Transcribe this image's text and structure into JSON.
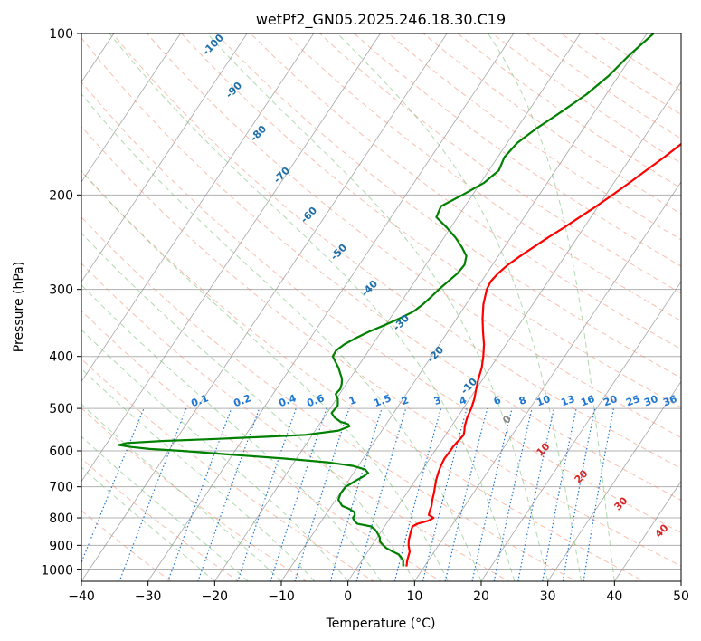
{
  "chart_data": {
    "type": "line",
    "title": "wetPf2_GN05.2025.246.18.30.C19",
    "xlabel": "Temperature (°C)",
    "ylabel": "Pressure (hPa)",
    "xlim": [
      -40,
      50
    ],
    "ylim": [
      1050,
      100
    ],
    "y_scale": "log",
    "x_ticks": [
      "−40",
      "−30",
      "−20",
      "−10",
      "0",
      "10",
      "20",
      "30",
      "40",
      "50"
    ],
    "y_ticks": [
      "100",
      "200",
      "300",
      "400",
      "500",
      "600",
      "700",
      "800",
      "900",
      "1000"
    ],
    "grid": true,
    "series": [
      {
        "color": "#ff0000",
        "p": [
          985,
          960,
          925,
          900,
          880,
          850,
          830,
          820,
          810,
          800,
          790,
          780,
          760,
          740,
          720,
          700,
          680,
          660,
          640,
          620,
          600,
          590,
          580,
          570,
          560,
          550,
          540,
          520,
          500,
          480,
          460,
          440,
          420,
          400,
          380,
          360,
          340,
          320,
          300,
          290,
          280,
          270,
          260,
          250,
          240,
          230,
          220,
          210,
          200,
          190,
          180,
          170,
          160,
          150,
          140,
          130,
          120,
          110,
          100
        ],
        "t": [
          7.3,
          6.8,
          6.3,
          5.5,
          5.0,
          4.5,
          4.2,
          4.7,
          6.0,
          6.5,
          5.5,
          5.3,
          5.0,
          4.5,
          4.1,
          3.6,
          3.1,
          2.7,
          2.4,
          2.2,
          2.3,
          2.3,
          2.4,
          2.6,
          2.7,
          2.4,
          2.0,
          1.5,
          1.2,
          0.7,
          0.0,
          -0.7,
          -1.3,
          -2.2,
          -3.3,
          -4.7,
          -6.1,
          -7.4,
          -8.4,
          -8.6,
          -8.3,
          -7.7,
          -6.7,
          -5.6,
          -4.4,
          -3.0,
          -1.7,
          -0.3,
          1.0,
          2.3,
          3.6,
          5.0,
          6.3,
          7.6,
          9.0,
          10.7,
          12.3,
          14.5,
          16.5
        ]
      },
      {
        "color": "#008000",
        "p": [
          985,
          960,
          935,
          925,
          910,
          900,
          885,
          870,
          850,
          840,
          830,
          820,
          810,
          800,
          790,
          780,
          770,
          760,
          740,
          720,
          700,
          690,
          680,
          670,
          660,
          650,
          640,
          630,
          620,
          610,
          600,
          595,
          590,
          585,
          580,
          575,
          570,
          565,
          560,
          550,
          540,
          535,
          530,
          520,
          510,
          500,
          495,
          490,
          480,
          470,
          460,
          450,
          440,
          430,
          420,
          410,
          400,
          390,
          380,
          370,
          360,
          350,
          340,
          330,
          320,
          310,
          300,
          290,
          280,
          270,
          260,
          250,
          240,
          230,
          220,
          210,
          200,
          190,
          180,
          170,
          160,
          150,
          140,
          130,
          120,
          110,
          100
        ],
        "t": [
          6.8,
          6.2,
          4.9,
          3.8,
          2.4,
          1.7,
          0.8,
          0.4,
          -0.6,
          -1.2,
          -2.0,
          -4.4,
          -5.1,
          -5.6,
          -5.6,
          -6.0,
          -7.0,
          -8.4,
          -9.6,
          -9.9,
          -9.8,
          -9.3,
          -8.8,
          -8.2,
          -7.8,
          -8.6,
          -10.8,
          -15.0,
          -22.0,
          -30.0,
          -38.0,
          -43.0,
          -46.0,
          -48.0,
          -47.0,
          -42.0,
          -34.0,
          -27.0,
          -21.0,
          -16.5,
          -15.3,
          -15.7,
          -17.0,
          -18.4,
          -19.3,
          -19.2,
          -19.1,
          -19.3,
          -19.8,
          -20.6,
          -20.4,
          -20.7,
          -21.2,
          -22.0,
          -22.8,
          -23.8,
          -24.8,
          -24.9,
          -24.3,
          -23.2,
          -21.9,
          -20.2,
          -18.6,
          -17.2,
          -16.5,
          -16.0,
          -15.6,
          -15.0,
          -14.4,
          -14.2,
          -14.8,
          -16.4,
          -18.3,
          -20.6,
          -23.2,
          -23.6,
          -21.5,
          -19.5,
          -18.5,
          -19.0,
          -18.5,
          -17.0,
          -15.0,
          -13.0,
          -11.5,
          -10.5,
          -9.0
        ]
      }
    ],
    "dry_adiabat_labels": [
      "-100",
      "-90",
      "-80",
      "-70",
      "-60",
      "-50",
      "-40",
      "-30",
      "-20",
      "-10"
    ],
    "mixing_ratio_labels": [
      "0.1",
      "0.2",
      "0.4",
      "0.6",
      "1",
      "1.5",
      "2",
      "3",
      "4",
      "6",
      "8",
      "10",
      "13",
      "16",
      "20",
      "25",
      "30",
      "36"
    ],
    "moist_adiabat_labels": [
      "0",
      "10",
      "20",
      "30",
      "40"
    ],
    "colors": {
      "temperature": "#ff0000",
      "dewpoint": "#008000",
      "isotherm": "#808080",
      "dry_adiabat": "#f28b6e",
      "moist_adiabat": "#6dbb6d",
      "mixing_ratio": "#1f77d4",
      "dry_label": "#1f6fa8",
      "moist_label": "#d62728"
    }
  }
}
